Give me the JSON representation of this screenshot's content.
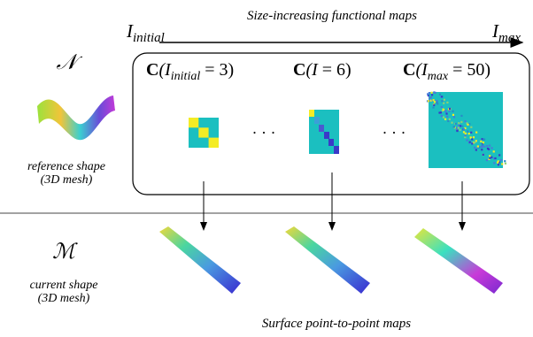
{
  "header": {
    "title": "Size-increasing functional maps",
    "start": {
      "symbol": "I",
      "sub": "initial"
    },
    "end": {
      "symbol": "I",
      "sub": "max"
    }
  },
  "reference": {
    "symbol": "𝒩",
    "line1": "reference shape",
    "line2": "(3D mesh)"
  },
  "current": {
    "symbol": "ℳ",
    "line1": "current shape",
    "line2": "(3D mesh)"
  },
  "matrices": [
    {
      "bold": "C",
      "open": "(I",
      "sub": "initial",
      "close": " = 3)"
    },
    {
      "bold": "C",
      "open": "(I",
      "close": " = 6)"
    },
    {
      "bold": "C",
      "open": "(I",
      "sub": "max",
      "close": " = 50)"
    }
  ],
  "ellipsis": "· · ·",
  "footer": "Surface point-to-point maps"
}
